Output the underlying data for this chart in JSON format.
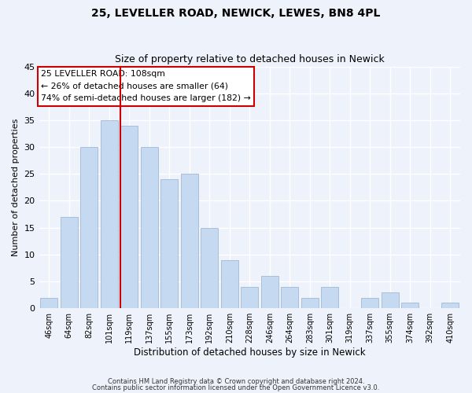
{
  "title1": "25, LEVELLER ROAD, NEWICK, LEWES, BN8 4PL",
  "title2": "Size of property relative to detached houses in Newick",
  "xlabel": "Distribution of detached houses by size in Newick",
  "ylabel": "Number of detached properties",
  "categories": [
    "46sqm",
    "64sqm",
    "82sqm",
    "101sqm",
    "119sqm",
    "137sqm",
    "155sqm",
    "173sqm",
    "192sqm",
    "210sqm",
    "228sqm",
    "246sqm",
    "264sqm",
    "283sqm",
    "301sqm",
    "319sqm",
    "337sqm",
    "355sqm",
    "374sqm",
    "392sqm",
    "410sqm"
  ],
  "values": [
    2,
    17,
    30,
    35,
    34,
    30,
    24,
    25,
    15,
    9,
    4,
    6,
    4,
    2,
    4,
    0,
    2,
    3,
    1,
    0,
    1
  ],
  "bar_color": "#c5d9f0",
  "bar_edge_color": "#a0b8d8",
  "background_color": "#eef2fb",
  "grid_color": "#ffffff",
  "ylim": [
    0,
    45
  ],
  "yticks": [
    0,
    5,
    10,
    15,
    20,
    25,
    30,
    35,
    40,
    45
  ],
  "red_line_x": 3.55,
  "annotation_text": "25 LEVELLER ROAD: 108sqm\n← 26% of detached houses are smaller (64)\n74% of semi-detached houses are larger (182) →",
  "annotation_box_color": "#ffffff",
  "annotation_box_edge": "#cc0000",
  "footer1": "Contains HM Land Registry data © Crown copyright and database right 2024.",
  "footer2": "Contains public sector information licensed under the Open Government Licence v3.0."
}
